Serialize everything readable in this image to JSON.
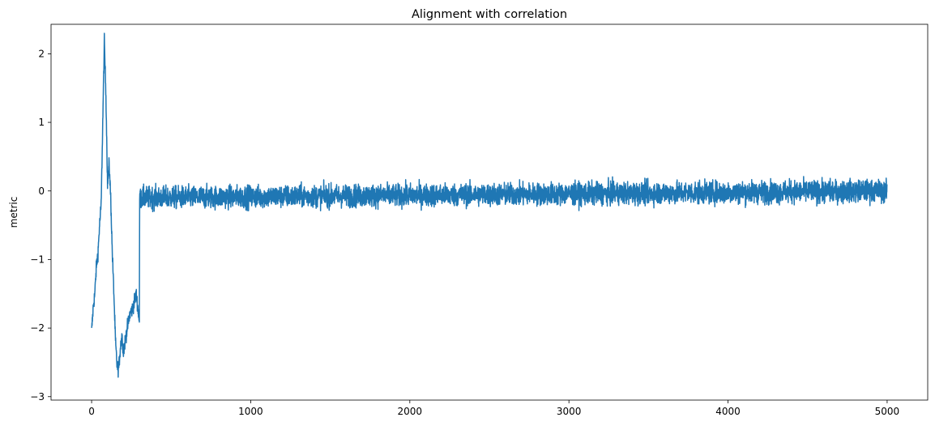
{
  "chart_data": {
    "type": "line",
    "title": "Alignment with correlation",
    "xlabel": "",
    "ylabel": "metric",
    "xlim": [
      -255,
      5255
    ],
    "ylim": [
      -3.05,
      2.43
    ],
    "xticks": [
      0,
      1000,
      2000,
      3000,
      4000,
      5000
    ],
    "xtick_labels": [
      "0",
      "1000",
      "2000",
      "3000",
      "4000",
      "5000"
    ],
    "yticks": [
      -3,
      -2,
      -1,
      0,
      1,
      2
    ],
    "ytick_labels": [
      "−3",
      "−2",
      "−1",
      "0",
      "1",
      "2"
    ],
    "grid": false,
    "series": [
      {
        "name": "",
        "color": "#1f77b4",
        "x_start": 0,
        "x_end": 4999,
        "keypoints": [
          [
            0,
            -2.05
          ],
          [
            10,
            -1.7
          ],
          [
            20,
            -1.5
          ],
          [
            30,
            -1.1
          ],
          [
            40,
            -0.9
          ],
          [
            50,
            -0.5
          ],
          [
            60,
            -0.2
          ],
          [
            70,
            1.0
          ],
          [
            80,
            2.18
          ],
          [
            90,
            1.4
          ],
          [
            100,
            0.1
          ],
          [
            110,
            0.4
          ],
          [
            120,
            -0.1
          ],
          [
            130,
            -0.9
          ],
          [
            140,
            -1.5
          ],
          [
            150,
            -2.2
          ],
          [
            160,
            -2.55
          ],
          [
            170,
            -2.6
          ],
          [
            180,
            -2.3
          ],
          [
            190,
            -2.1
          ],
          [
            200,
            -2.35
          ],
          [
            220,
            -2.05
          ],
          [
            240,
            -1.8
          ],
          [
            260,
            -1.7
          ],
          [
            280,
            -1.5
          ],
          [
            300,
            -1.9
          ],
          [
            302,
            -0.1
          ],
          [
            4999,
            0.0
          ]
        ],
        "noise_amplitude": 0.14
      }
    ]
  }
}
